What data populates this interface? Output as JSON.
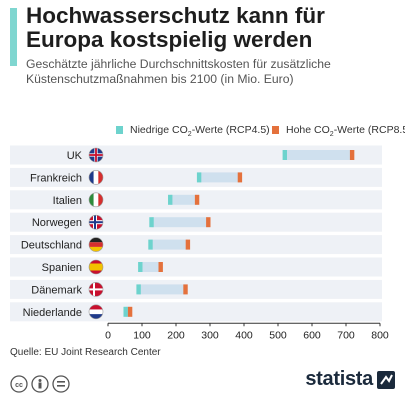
{
  "header": {
    "title": "Hochwasserschutz kann für Europa kostspielig werden",
    "subtitle": "Geschätzte jährliche Durchschnittskosten für zusätzliche Küstenschutzmaßnahmen bis 2100 (in Mio. Euro)"
  },
  "legend": {
    "low_prefix": "Niedrige CO",
    "low_sub": "2",
    "low_suffix": "-Werte (RCP4.5)",
    "high_prefix": "Hohe CO",
    "high_sub": "2",
    "high_suffix": "-Werte (RCP8.5)"
  },
  "colors": {
    "low": "#6dd3cd",
    "high": "#e4713c",
    "range": "#cfe0ee",
    "row_band": "#eef1f6",
    "axis": "#333333"
  },
  "chart_data": {
    "type": "dot-range",
    "categories": [
      "UK",
      "Frankreich",
      "Italien",
      "Norwegen",
      "Deutschland",
      "Spanien",
      "Dänemark",
      "Niederlande"
    ],
    "series": [
      {
        "name": "Niedrige CO₂-Werte (RCP4.5)",
        "values": [
          520,
          268,
          183,
          128,
          125,
          95,
          90,
          52
        ]
      },
      {
        "name": "Hohe CO₂-Werte (RCP8.5)",
        "values": [
          718,
          388,
          262,
          295,
          235,
          155,
          228,
          65
        ]
      }
    ],
    "xlim": [
      0,
      800
    ],
    "xticks": [
      0,
      100,
      200,
      300,
      400,
      500,
      600,
      700,
      800
    ],
    "grid": false,
    "legend_position": "top"
  },
  "source": "Quelle: EU Joint Research Center",
  "footer": {
    "brand": "statista",
    "license_icons": [
      "cc-icon",
      "by-icon",
      "nd-icon"
    ]
  }
}
